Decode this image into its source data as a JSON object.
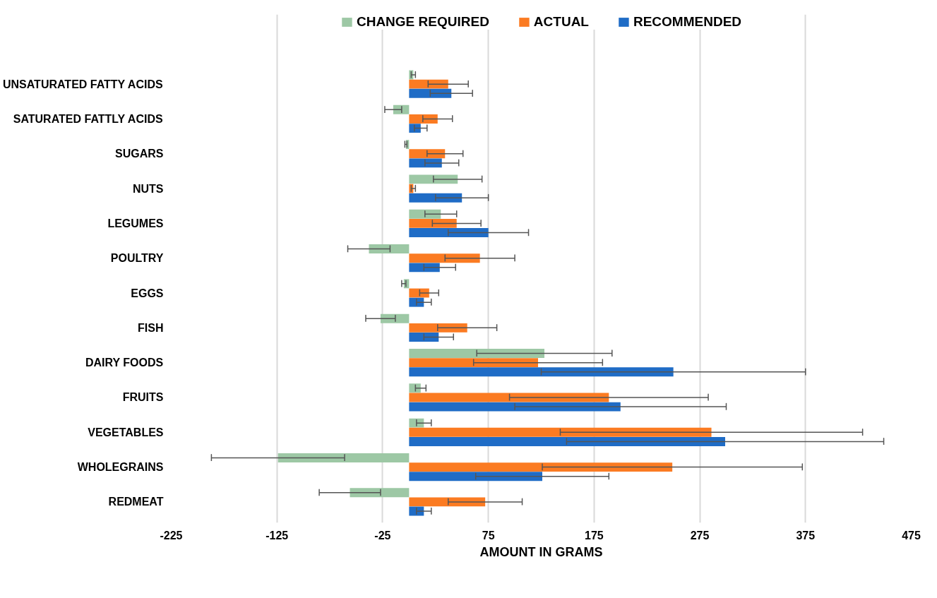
{
  "chart_data": {
    "type": "bar",
    "orientation": "horizontal",
    "xlabel": "AMOUNT IN GRAMS",
    "categories": [
      "UNSATURATED FATTY ACIDS",
      "SATURATED FATTLY ACIDS",
      "SUGARS",
      "NUTS",
      "LEGUMES",
      "POULTRY",
      "EGGS",
      "FISH",
      "DAIRY FOODS",
      "FRUITS",
      "VEGETABLES",
      "WHOLEGRAINS",
      "REDMEAT"
    ],
    "series": [
      {
        "name": "CHANGE REQUIRED",
        "color": "#9dc8a5",
        "values": [
          4,
          -15,
          -3,
          46,
          30,
          -38,
          -5,
          -27,
          128,
          11,
          14,
          -124,
          -56
        ],
        "errors": [
          2,
          8,
          1,
          23,
          15,
          20,
          2,
          14,
          64,
          5,
          7,
          63,
          29
        ]
      },
      {
        "name": "ACTUAL",
        "color": "#fb7b22",
        "values": [
          37,
          27,
          34,
          4,
          45,
          67,
          19,
          55,
          122,
          189,
          286,
          249,
          72
        ],
        "errors": [
          19,
          14,
          17,
          2,
          23,
          33,
          9,
          28,
          61,
          94,
          143,
          123,
          35
        ]
      },
      {
        "name": "RECOMMENDED",
        "color": "#1f6cc6",
        "values": [
          40,
          11,
          31,
          50,
          75,
          29,
          14,
          28,
          250,
          200,
          299,
          126,
          14
        ],
        "errors": [
          20,
          6,
          16,
          25,
          38,
          15,
          7,
          14,
          125,
          100,
          150,
          63,
          7
        ]
      }
    ],
    "xlim": [
      -225,
      475
    ],
    "xticks": [
      -225,
      -125,
      -25,
      75,
      175,
      275,
      375,
      475
    ],
    "grid": "x",
    "legend": "top"
  }
}
